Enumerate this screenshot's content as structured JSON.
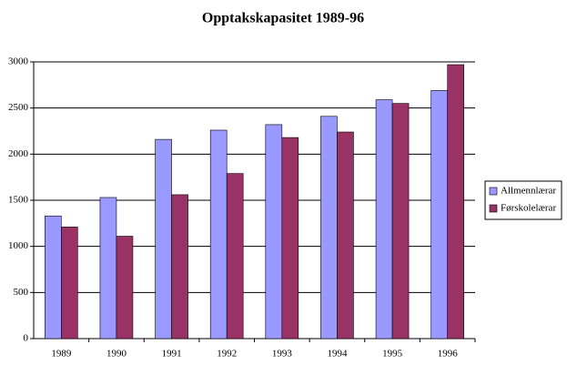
{
  "chart_data": {
    "type": "bar",
    "title": "Opptakskapasitet 1989-96",
    "categories": [
      "1989",
      "1990",
      "1991",
      "1992",
      "1993",
      "1994",
      "1995",
      "1996"
    ],
    "series": [
      {
        "name": "Allmennlærar",
        "color": "#9999ff",
        "values": [
          1330,
          1530,
          2160,
          2260,
          2320,
          2410,
          2590,
          2690
        ]
      },
      {
        "name": "Førskolelærar",
        "color": "#993366",
        "values": [
          1210,
          1110,
          1560,
          1790,
          2180,
          2240,
          2550,
          2970
        ]
      }
    ],
    "ylim": [
      0,
      3000
    ],
    "yticks": [
      0,
      500,
      1000,
      1500,
      2000,
      2500,
      3000
    ],
    "grid": true,
    "legend": "right"
  }
}
